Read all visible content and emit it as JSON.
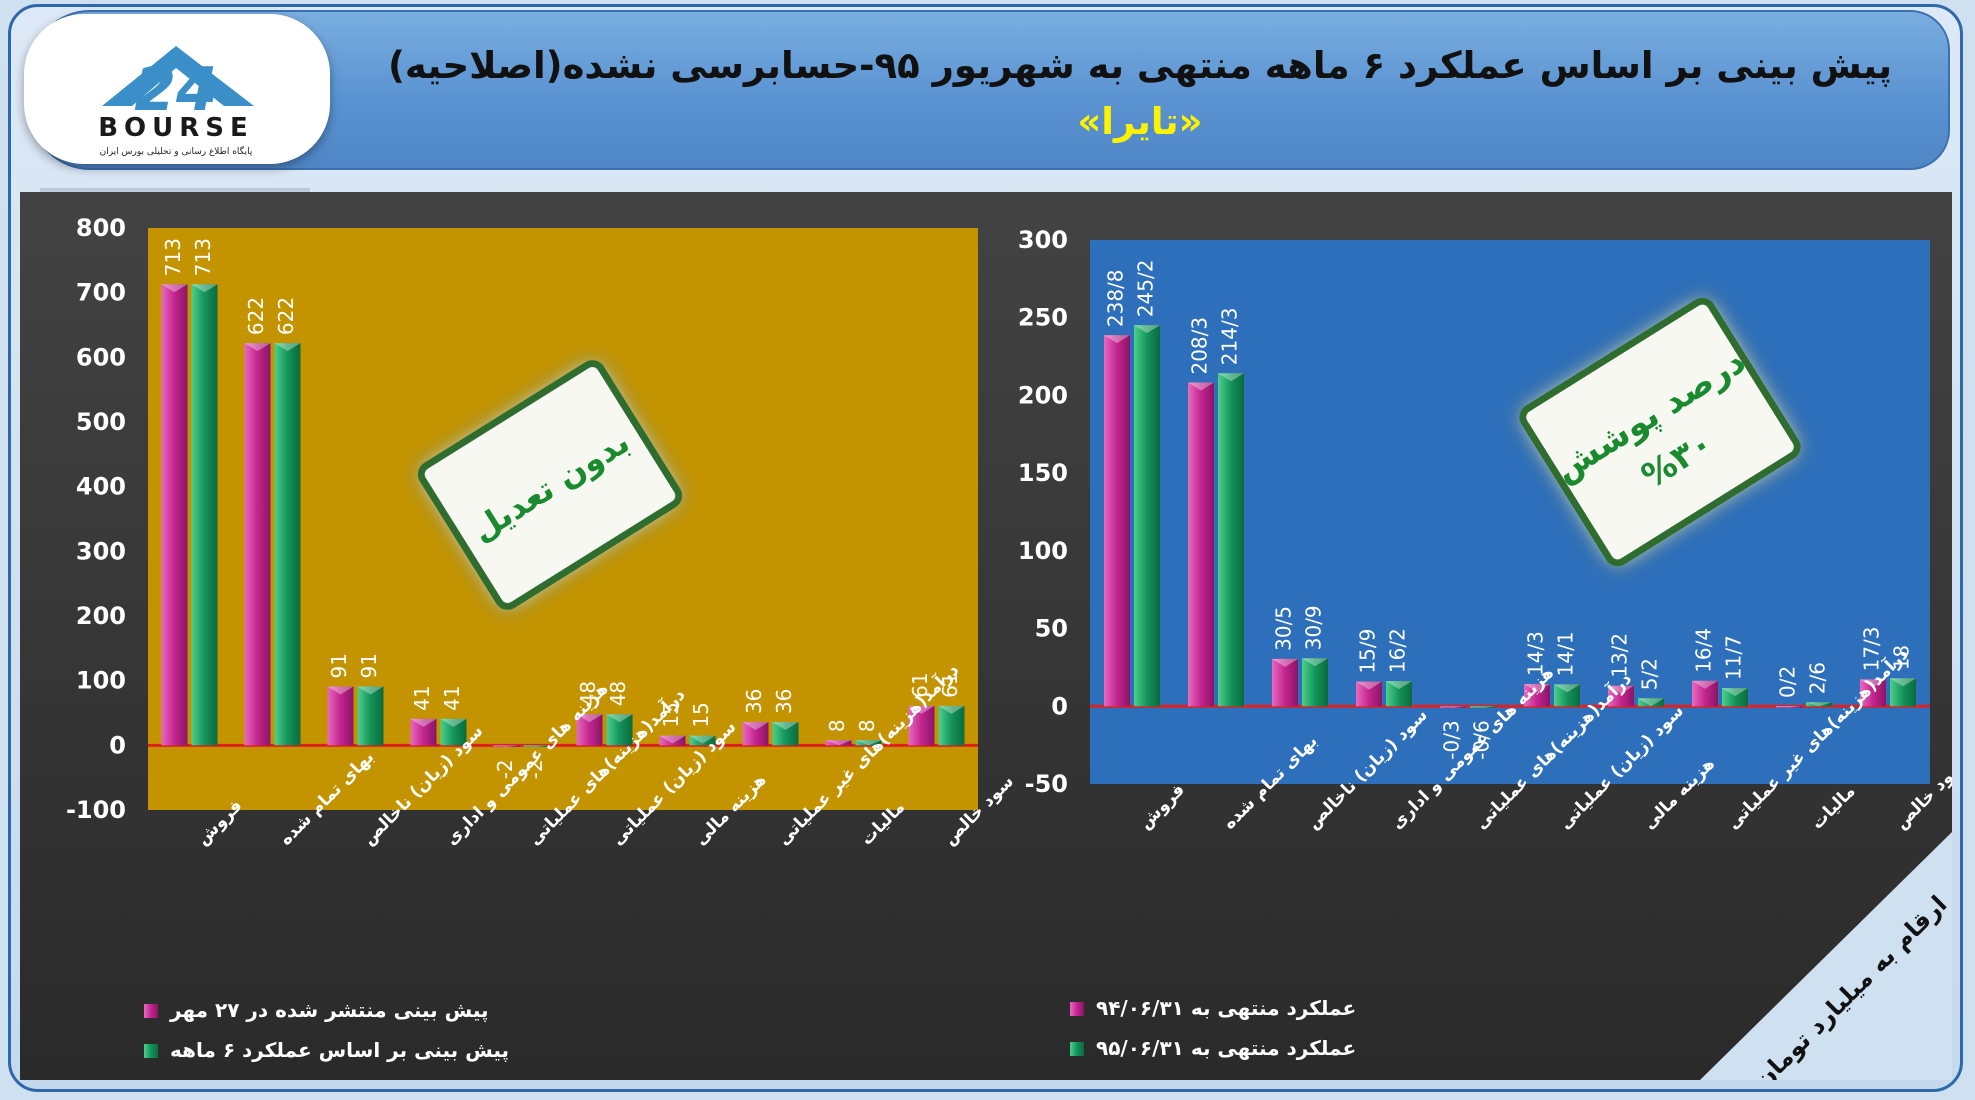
{
  "header": {
    "logo": {
      "mark_text": "24",
      "wordmark": "BOURSE",
      "tagline": "پایگاه اطلاع رسانی و تحلیلی بورس ایران"
    },
    "title": "پیش بینی بر اساس عملکرد ۶ ماهه منتهی به شهریور ۹۵-حسابرسی نشده(اصلاحیه)",
    "subtitle": "«تایرا»"
  },
  "footer_note": "ارقام به میلیارد تومان",
  "colors": {
    "series_a": "#c2258e",
    "series_b": "#13945a",
    "left_plot_bg": "#c49400",
    "right_plot_bg": "#2e6fbb",
    "zero_line": "#e02020"
  },
  "badges": {
    "left": {
      "line1": "بدون تعدیل"
    },
    "right": {
      "line1": "درصد پوشش",
      "line2": "%۳۰"
    }
  },
  "chart_data": [
    {
      "type": "bar",
      "categories": [
        "فروش",
        "بهای تمام شده",
        "سود (زیان) ناخالص",
        "هزینه های عمومی و اداری",
        "درآمد(هزینه)های عملیاتی",
        "سود (زیان) عملیاتی",
        "هزینه مالی",
        "درآمد(هزینه)های غیر عملیاتی",
        "مالیات",
        "سود خالص"
      ],
      "series": [
        {
          "name": "پیش بینی منتشر شده در ۲۷ مهر",
          "values": [
            713,
            622,
            91,
            41,
            -2,
            48,
            15,
            36,
            8,
            61
          ],
          "labels": [
            "713",
            "622",
            "91",
            "41",
            "-2",
            "48",
            "15",
            "36",
            "8",
            "61"
          ]
        },
        {
          "name": "پیش بینی بر اساس عملکرد ۶ ماهه",
          "values": [
            713,
            622,
            91,
            41,
            -2,
            48,
            15,
            36,
            8,
            61
          ],
          "labels": [
            "713",
            "622",
            "91",
            "41",
            "-2",
            "48",
            "15",
            "36",
            "8",
            "61"
          ]
        }
      ],
      "ylim": [
        -100,
        800
      ],
      "yticks": [
        "800",
        "700",
        "600",
        "500",
        "400",
        "300",
        "200",
        "100",
        "0",
        "-100"
      ],
      "legend": "bottom-left"
    },
    {
      "type": "bar",
      "categories": [
        "فروش",
        "بهای تمام شده",
        "سود (زیان) ناخالص",
        "هزینه های عمومی و اداری",
        "درآمد(هزینه)های عملیاتی",
        "سود (زیان) عملیاتی",
        "هزینه مالی",
        "درآمد(هزینه)های غیر عملیاتی",
        "مالیات",
        "سود خالص"
      ],
      "series": [
        {
          "name": "عملکرد منتهی به ۹۴/۰۶/۳۱",
          "values": [
            238.8,
            208.3,
            30.5,
            15.9,
            -0.3,
            14.3,
            13.2,
            16.4,
            0.2,
            17.3
          ],
          "labels": [
            "238/8",
            "208/3",
            "30/5",
            "15/9",
            "-0/3",
            "14/3",
            "13/2",
            "16/4",
            "0/2",
            "17/3"
          ]
        },
        {
          "name": "عملکرد منتهی به ۹۵/۰۶/۳۱",
          "values": [
            245.2,
            214.3,
            30.9,
            16.2,
            -0.6,
            14.1,
            5.2,
            11.7,
            2.6,
            18
          ],
          "labels": [
            "245/2",
            "214/3",
            "30/9",
            "16/2",
            "-0/6",
            "14/1",
            "5/2",
            "11/7",
            "2/6",
            "18"
          ]
        }
      ],
      "ylim": [
        -50,
        300
      ],
      "yticks": [
        "300",
        "250",
        "200",
        "150",
        "100",
        "50",
        "0",
        "-50"
      ],
      "legend": "bottom"
    }
  ]
}
